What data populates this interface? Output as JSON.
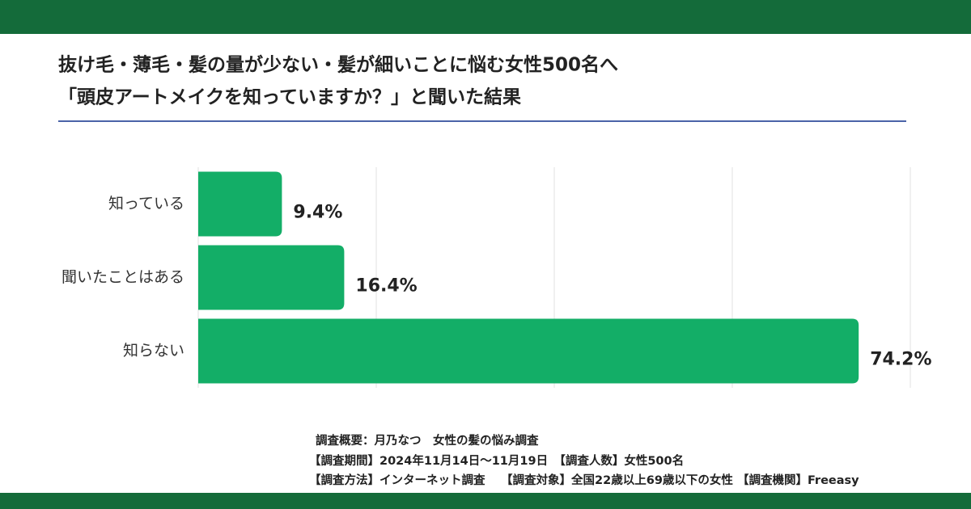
{
  "chart_data": {
    "type": "bar",
    "orientation": "horizontal",
    "title": [
      "抜け毛・薄毛・髪の量が少ない・髪が細いことに悩む女性500名へ",
      "「頭皮アートメイクを知っていますか？」と聞いた結果"
    ],
    "categories": [
      "知っている",
      "聞いたことはある",
      "知らない"
    ],
    "values": [
      9.4,
      16.4,
      74.2
    ],
    "value_labels": [
      "9.4%",
      "16.4%",
      "74.2%"
    ],
    "color": "#13ae67",
    "xlim": [
      0,
      80
    ],
    "xticks": [
      0,
      20,
      40,
      60,
      80
    ],
    "grid": true,
    "notes": [
      "調査概要：月乃なつ　女性の髪の悩み調査",
      "【調査期間】2024年11月14日〜11月19日　【調査人数】女性500名",
      "【調査方法】インターネット調査　 【調査対象】全国22歳以上69歳以下の女性 【調査機関】Freeasy"
    ]
  }
}
